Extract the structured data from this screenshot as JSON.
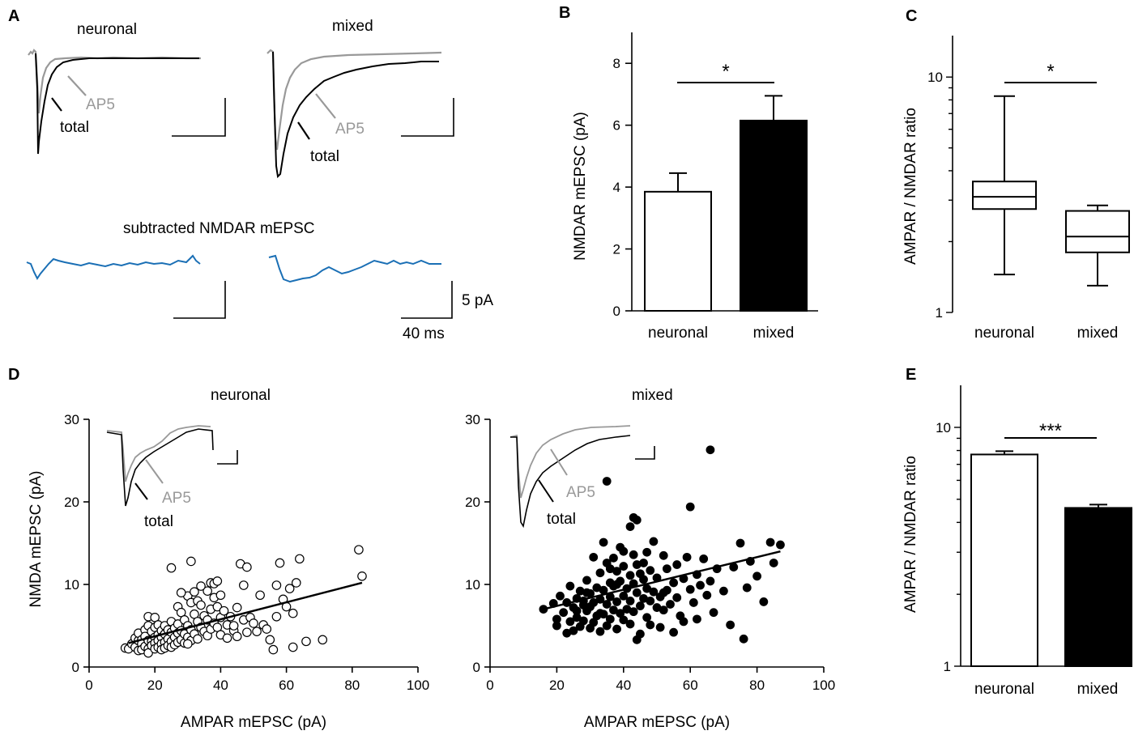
{
  "panels": {
    "A": {
      "letter": "A",
      "title_left": "neuronal",
      "title_right": "mixed",
      "ap5_label": "AP5",
      "total_label": "total",
      "subtracted_title": "subtracted NMDAR mEPSC",
      "scale_current": "5 pA",
      "scale_time": "40 ms",
      "colors": {
        "total": "#000000",
        "ap5": "#999999",
        "subtracted": "#1a6fb5"
      }
    },
    "B": {
      "letter": "B"
    },
    "C": {
      "letter": "C"
    },
    "D": {
      "letter": "D",
      "title_left": "neuronal",
      "title_right": "mixed",
      "ap5_label": "AP5",
      "total_label": "total"
    },
    "E": {
      "letter": "E"
    }
  },
  "chart_data": [
    {
      "id": "B",
      "type": "bar",
      "categories": [
        "neuronal",
        "mixed"
      ],
      "values": [
        3.85,
        6.15
      ],
      "errors": [
        0.6,
        0.8
      ],
      "fill": [
        "#ffffff",
        "#000000"
      ],
      "ylabel": "NMDAR mEPSC (pA)",
      "ylim": [
        0,
        9
      ],
      "yticks": [
        "0",
        "2",
        "4",
        "6",
        "8"
      ],
      "significance": "*"
    },
    {
      "id": "C",
      "type": "box",
      "categories": [
        "neuronal",
        "mixed"
      ],
      "boxes": [
        {
          "min": 1.45,
          "q1": 2.75,
          "median": 3.1,
          "q3": 3.6,
          "max": 8.3
        },
        {
          "min": 1.3,
          "q1": 1.8,
          "median": 2.1,
          "q3": 2.7,
          "max": 2.85
        }
      ],
      "ylabel": "AMPAR / NMDAR ratio",
      "yscale": "log",
      "ylim": [
        1,
        15
      ],
      "yticks": [
        "1",
        "10"
      ],
      "significance": "*"
    },
    {
      "id": "E",
      "type": "bar",
      "categories": [
        "neuronal",
        "mixed"
      ],
      "values": [
        7.7,
        4.6
      ],
      "errors": [
        0.25,
        0.15
      ],
      "fill": [
        "#ffffff",
        "#000000"
      ],
      "ylabel": "AMPAR / NMDAR ratio",
      "yscale": "log",
      "ylim": [
        1,
        15
      ],
      "yticks": [
        "1",
        "10"
      ],
      "significance": "***"
    },
    {
      "id": "D-neuronal",
      "type": "scatter",
      "marker": "open",
      "xlabel": "AMPAR mEPSC (pA)",
      "ylabel": "NMDA mEPSC (pA)",
      "xlim": [
        0,
        100
      ],
      "ylim": [
        0,
        30
      ],
      "xticks": [
        "0",
        "20",
        "40",
        "60",
        "80",
        "100"
      ],
      "yticks": [
        "0",
        "10",
        "20",
        "30"
      ],
      "fit": [
        [
          12,
          2.9
        ],
        [
          83,
          10.2
        ]
      ],
      "points": [
        [
          11,
          2.3
        ],
        [
          12,
          2.2
        ],
        [
          13,
          2.8
        ],
        [
          14,
          3.5
        ],
        [
          14,
          2.4
        ],
        [
          15,
          3.2
        ],
        [
          15,
          2.0
        ],
        [
          15,
          4.1
        ],
        [
          16,
          3.3
        ],
        [
          16,
          2.8
        ],
        [
          16,
          2.1
        ],
        [
          17,
          4.5
        ],
        [
          17,
          3.7
        ],
        [
          17,
          2.5
        ],
        [
          18,
          6.1
        ],
        [
          18,
          5.0
        ],
        [
          18,
          3.2
        ],
        [
          18,
          2.2
        ],
        [
          18,
          1.7
        ],
        [
          19,
          4.3
        ],
        [
          19,
          3.1
        ],
        [
          19,
          2.6
        ],
        [
          20,
          6.0
        ],
        [
          20,
          4.8
        ],
        [
          20,
          3.6
        ],
        [
          20,
          2.9
        ],
        [
          20,
          2.2
        ],
        [
          21,
          5.1
        ],
        [
          21,
          3.9
        ],
        [
          21,
          3.2
        ],
        [
          21,
          2.4
        ],
        [
          22,
          4.4
        ],
        [
          22,
          3.6
        ],
        [
          22,
          2.8
        ],
        [
          22,
          2.1
        ],
        [
          23,
          5.0
        ],
        [
          23,
          4.0
        ],
        [
          23,
          3.0
        ],
        [
          23,
          2.3
        ],
        [
          24,
          4.5
        ],
        [
          24,
          3.4
        ],
        [
          24,
          2.6
        ],
        [
          25,
          5.5
        ],
        [
          25,
          4.2
        ],
        [
          25,
          3.1
        ],
        [
          25,
          2.4
        ],
        [
          26,
          4.7
        ],
        [
          26,
          3.6
        ],
        [
          26,
          2.7
        ],
        [
          27,
          7.3
        ],
        [
          27,
          5.2
        ],
        [
          27,
          4.1
        ],
        [
          27,
          3.0
        ],
        [
          28,
          6.6
        ],
        [
          28,
          4.4
        ],
        [
          28,
          3.3
        ],
        [
          29,
          5.7
        ],
        [
          29,
          4.0
        ],
        [
          29,
          2.9
        ],
        [
          30,
          8.6
        ],
        [
          30,
          5.0
        ],
        [
          30,
          3.6
        ],
        [
          31,
          12.8
        ],
        [
          31,
          7.8
        ],
        [
          31,
          4.5
        ],
        [
          31,
          3.2
        ],
        [
          32,
          9.1
        ],
        [
          32,
          6.4
        ],
        [
          32,
          4.0
        ],
        [
          33,
          8.0
        ],
        [
          33,
          5.5
        ],
        [
          33,
          3.4
        ],
        [
          34,
          7.5
        ],
        [
          34,
          4.8
        ],
        [
          35,
          6.2
        ],
        [
          35,
          4.3
        ],
        [
          36,
          9.2
        ],
        [
          36,
          5.7
        ],
        [
          36,
          3.8
        ],
        [
          37,
          10.2
        ],
        [
          37,
          7.0
        ],
        [
          37,
          4.6
        ],
        [
          38,
          10.1
        ],
        [
          38,
          8.4
        ],
        [
          38,
          5.3
        ],
        [
          39,
          10.4
        ],
        [
          39,
          7.3
        ],
        [
          39,
          4.8
        ],
        [
          40,
          8.7
        ],
        [
          40,
          6.0
        ],
        [
          40,
          3.9
        ],
        [
          41,
          6.8
        ],
        [
          42,
          5.1
        ],
        [
          42,
          3.5
        ],
        [
          43,
          6.1
        ],
        [
          44,
          4.4
        ],
        [
          45,
          7.2
        ],
        [
          45,
          3.7
        ],
        [
          46,
          12.5
        ],
        [
          47,
          9.9
        ],
        [
          47,
          5.7
        ],
        [
          48,
          4.2
        ],
        [
          49,
          6.0
        ],
        [
          50,
          5.3
        ],
        [
          51,
          4.3
        ],
        [
          52,
          8.7
        ],
        [
          53,
          5.1
        ],
        [
          54,
          4.6
        ],
        [
          55,
          3.3
        ],
        [
          56,
          2.1
        ],
        [
          57,
          9.9
        ],
        [
          57,
          6.1
        ],
        [
          58,
          12.6
        ],
        [
          59,
          8.2
        ],
        [
          60,
          7.3
        ],
        [
          61,
          9.5
        ],
        [
          62,
          6.5
        ],
        [
          62,
          2.4
        ],
        [
          63,
          10.2
        ],
        [
          64,
          13.1
        ],
        [
          66,
          3.1
        ],
        [
          71,
          3.3
        ],
        [
          82,
          14.2
        ],
        [
          83,
          11.0
        ],
        [
          25,
          12.0
        ],
        [
          28,
          9.0
        ],
        [
          34,
          9.8
        ],
        [
          44,
          5.0
        ],
        [
          48,
          12.1
        ],
        [
          30,
          2.8
        ]
      ]
    },
    {
      "id": "D-mixed",
      "type": "scatter",
      "marker": "filled",
      "xlabel": "AMPAR mEPSC (pA)",
      "ylabel": "",
      "xlim": [
        0,
        100
      ],
      "ylim": [
        0,
        30
      ],
      "xticks": [
        "0",
        "20",
        "40",
        "60",
        "80",
        "100"
      ],
      "yticks": [
        "0",
        "10",
        "20",
        "30"
      ],
      "fit": [
        [
          17,
          7.1
        ],
        [
          87,
          14.0
        ]
      ],
      "points": [
        [
          16,
          7.0
        ],
        [
          19,
          7.7
        ],
        [
          20,
          5.8
        ],
        [
          20,
          5.0
        ],
        [
          21,
          8.6
        ],
        [
          22,
          6.6
        ],
        [
          23,
          4.1
        ],
        [
          23,
          7.8
        ],
        [
          24,
          9.8
        ],
        [
          24,
          5.5
        ],
        [
          25,
          7.2
        ],
        [
          25,
          4.4
        ],
        [
          26,
          8.3
        ],
        [
          26,
          6.0
        ],
        [
          27,
          9.2
        ],
        [
          27,
          4.9
        ],
        [
          28,
          7.5
        ],
        [
          28,
          5.6
        ],
        [
          29,
          10.5
        ],
        [
          29,
          6.8
        ],
        [
          30,
          8.9
        ],
        [
          30,
          4.7
        ],
        [
          31,
          13.3
        ],
        [
          31,
          7.8
        ],
        [
          31,
          5.4
        ],
        [
          32,
          9.6
        ],
        [
          32,
          6.2
        ],
        [
          33,
          11.4
        ],
        [
          33,
          8.2
        ],
        [
          33,
          4.3
        ],
        [
          34,
          15.1
        ],
        [
          34,
          9.3
        ],
        [
          34,
          6.4
        ],
        [
          35,
          12.6
        ],
        [
          35,
          7.6
        ],
        [
          35,
          5.0
        ],
        [
          36,
          10.2
        ],
        [
          36,
          8.5
        ],
        [
          36,
          5.8
        ],
        [
          37,
          13.2
        ],
        [
          37,
          9.8
        ],
        [
          37,
          6.9
        ],
        [
          38,
          11.6
        ],
        [
          38,
          7.9
        ],
        [
          38,
          4.6
        ],
        [
          39,
          14.5
        ],
        [
          39,
          10.4
        ],
        [
          39,
          6.5
        ],
        [
          40,
          12.2
        ],
        [
          40,
          8.6
        ],
        [
          40,
          5.7
        ],
        [
          41,
          9.5
        ],
        [
          41,
          7.0
        ],
        [
          42,
          11.1
        ],
        [
          42,
          8.0
        ],
        [
          42,
          5.2
        ],
        [
          43,
          18.1
        ],
        [
          43,
          13.6
        ],
        [
          43,
          10.1
        ],
        [
          43,
          6.7
        ],
        [
          44,
          17.8
        ],
        [
          44,
          12.4
        ],
        [
          44,
          9.0
        ],
        [
          44,
          3.3
        ],
        [
          45,
          11.3
        ],
        [
          45,
          7.4
        ],
        [
          45,
          4.0
        ],
        [
          46,
          10.6
        ],
        [
          46,
          8.3
        ],
        [
          47,
          13.9
        ],
        [
          47,
          9.5
        ],
        [
          47,
          6.0
        ],
        [
          48,
          11.7
        ],
        [
          48,
          5.1
        ],
        [
          49,
          15.2
        ],
        [
          49,
          9.1
        ],
        [
          50,
          10.8
        ],
        [
          50,
          7.2
        ],
        [
          51,
          8.5
        ],
        [
          51,
          4.8
        ],
        [
          52,
          13.5
        ],
        [
          52,
          6.9
        ],
        [
          53,
          11.9
        ],
        [
          53,
          9.3
        ],
        [
          54,
          7.6
        ],
        [
          55,
          10.2
        ],
        [
          55,
          4.2
        ],
        [
          56,
          12.4
        ],
        [
          56,
          8.4
        ],
        [
          57,
          6.2
        ],
        [
          58,
          10.7
        ],
        [
          58,
          5.5
        ],
        [
          59,
          13.3
        ],
        [
          60,
          9.4
        ],
        [
          60,
          19.4
        ],
        [
          61,
          7.8
        ],
        [
          62,
          11.2
        ],
        [
          62,
          5.8
        ],
        [
          63,
          9.9
        ],
        [
          64,
          13.1
        ],
        [
          65,
          8.7
        ],
        [
          66,
          26.3
        ],
        [
          66,
          10.4
        ],
        [
          67,
          6.6
        ],
        [
          68,
          11.9
        ],
        [
          70,
          9.2
        ],
        [
          72,
          5.1
        ],
        [
          73,
          12.1
        ],
        [
          75,
          15.0
        ],
        [
          76,
          3.4
        ],
        [
          77,
          9.6
        ],
        [
          78,
          12.8
        ],
        [
          80,
          11.0
        ],
        [
          82,
          7.9
        ],
        [
          84,
          15.1
        ],
        [
          85,
          12.6
        ],
        [
          87,
          14.8
        ],
        [
          26,
          6.8
        ],
        [
          35,
          22.5
        ],
        [
          28,
          8.0
        ],
        [
          30,
          7.3
        ],
        [
          38,
          10.0
        ],
        [
          46,
          12.6
        ],
        [
          33,
          6.5
        ],
        [
          40,
          14.0
        ],
        [
          52,
          9.0
        ],
        [
          36,
          11.9
        ],
        [
          29,
          9.0
        ],
        [
          42,
          17.0
        ],
        [
          48,
          8.0
        ]
      ]
    }
  ]
}
